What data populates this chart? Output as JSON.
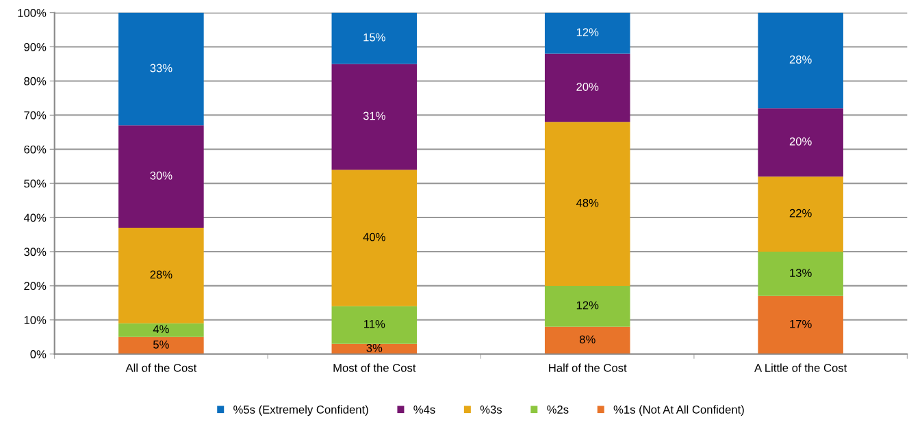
{
  "chart_data": {
    "type": "bar",
    "stacked": true,
    "categories": [
      "All of the Cost",
      "Most of the Cost",
      "Half of the Cost",
      "A Little of the Cost"
    ],
    "series": [
      {
        "name": "%1s (Not At All Confident)",
        "color": "#e8742a",
        "values": [
          5,
          3,
          8,
          17
        ],
        "value_labels": [
          "5%",
          "3%",
          "8%",
          "17%"
        ]
      },
      {
        "name": "%2s",
        "color": "#8dc63f",
        "values": [
          4,
          11,
          12,
          13
        ],
        "value_labels": [
          "4%",
          "11%",
          "12%",
          "13%"
        ]
      },
      {
        "name": "%3s",
        "color": "#e6a817",
        "values": [
          28,
          40,
          48,
          22
        ],
        "value_labels": [
          "28%",
          "40%",
          "48%",
          "22%"
        ]
      },
      {
        "name": "%4s",
        "color": "#75156f",
        "values": [
          30,
          31,
          20,
          20
        ],
        "value_labels": [
          "30%",
          "31%",
          "20%",
          "20%"
        ]
      },
      {
        "name": "%5s (Extremely Confident)",
        "color": "#0a6ebd",
        "values": [
          33,
          15,
          12,
          28
        ],
        "value_labels": [
          "33%",
          "15%",
          "12%",
          "28%"
        ]
      }
    ],
    "ylim": [
      0,
      100
    ],
    "yticks": [
      {
        "value": 0,
        "label": "0%"
      },
      {
        "value": 10,
        "label": "10%"
      },
      {
        "value": 20,
        "label": "20%"
      },
      {
        "value": 30,
        "label": "30%"
      },
      {
        "value": 40,
        "label": "40%"
      },
      {
        "value": 50,
        "label": "50%"
      },
      {
        "value": 60,
        "label": "60%"
      },
      {
        "value": 70,
        "label": "70%"
      },
      {
        "value": 80,
        "label": "80%"
      },
      {
        "value": 90,
        "label": "90%"
      },
      {
        "value": 100,
        "label": "100%"
      }
    ],
    "grid": "y",
    "legend": "bottom"
  }
}
